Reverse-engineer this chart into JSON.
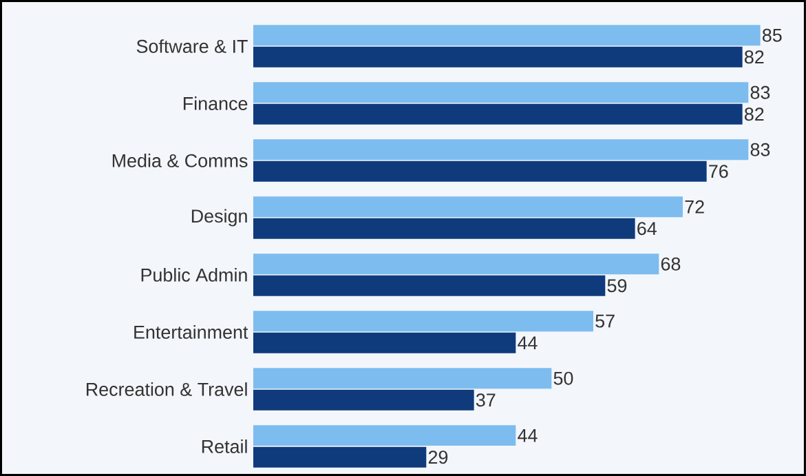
{
  "chart_data": {
    "type": "bar",
    "orientation": "horizontal",
    "categories": [
      "Software & IT",
      "Finance",
      "Media & Comms",
      "Design",
      "Public Admin",
      "Entertainment",
      "Recreation & Travel",
      "Retail"
    ],
    "series": [
      {
        "color": "#7dbcef",
        "values": [
          85,
          83,
          83,
          72,
          68,
          57,
          50,
          44
        ]
      },
      {
        "color": "#0f3b7c",
        "values": [
          82,
          82,
          76,
          64,
          59,
          44,
          37,
          29
        ]
      }
    ],
    "data_labels": true
  }
}
